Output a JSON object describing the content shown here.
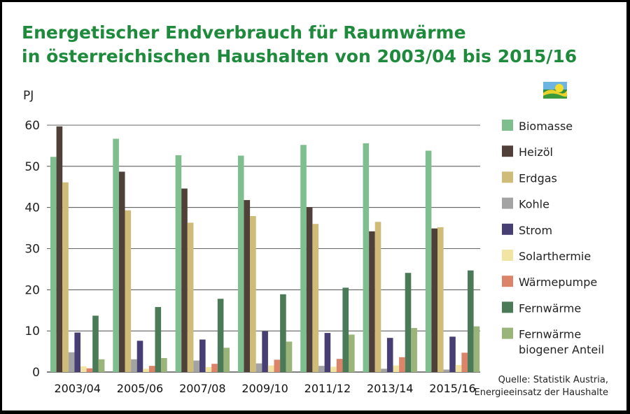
{
  "chart_data": {
    "type": "bar",
    "title": [
      "Energetischer Endverbrauch für Raumwärme",
      "in österreichischen Haushalten von 2003/04 bis 2015/16"
    ],
    "ylabel": "PJ",
    "ylim": [
      0,
      60
    ],
    "yticks": [
      0,
      10,
      20,
      30,
      40,
      50,
      60
    ],
    "grid": true,
    "legend_position": "right",
    "categories": [
      "2003/04",
      "2005/06",
      "2007/08",
      "2009/10",
      "2011/12",
      "2013/14",
      "2015/16"
    ],
    "series": [
      {
        "name": "Biomasse",
        "color": "#7fbf8f",
        "values": [
          52.3,
          56.7,
          52.7,
          52.6,
          55.2,
          55.6,
          53.8
        ]
      },
      {
        "name": "Heizöl",
        "color": "#4f4039",
        "values": [
          59.7,
          48.7,
          44.6,
          41.8,
          40.1,
          34.2,
          34.9
        ]
      },
      {
        "name": "Erdgas",
        "color": "#cfbc79",
        "values": [
          46.1,
          39.3,
          36.3,
          37.9,
          36.0,
          36.5,
          35.2
        ]
      },
      {
        "name": "Kohle",
        "color": "#a3a3a3",
        "values": [
          4.8,
          3.1,
          2.8,
          2.1,
          1.5,
          0.8,
          0.6
        ]
      },
      {
        "name": "Strom",
        "color": "#473e74",
        "values": [
          9.6,
          7.6,
          7.9,
          9.9,
          9.5,
          8.3,
          8.6
        ]
      },
      {
        "name": "Solarthermie",
        "color": "#f2e5a3",
        "values": [
          1.4,
          0.8,
          1.2,
          1.6,
          1.3,
          1.6,
          1.7
        ]
      },
      {
        "name": "Wärmepumpe",
        "color": "#dc8469",
        "values": [
          0.9,
          1.5,
          2.0,
          3.0,
          3.2,
          3.6,
          4.7
        ]
      },
      {
        "name": "Fernwärme",
        "color": "#4b7a58",
        "values": [
          13.7,
          15.8,
          17.8,
          18.9,
          20.5,
          24.1,
          24.7
        ]
      },
      {
        "name": "Fernwärme biogener Anteil",
        "legend_lines": [
          "Fernwärme",
          "biogener Anteil"
        ],
        "color": "#9ab47a",
        "values": [
          3.1,
          3.4,
          5.9,
          7.4,
          9.1,
          10.7,
          11.1
        ]
      }
    ],
    "source": [
      "Quelle: Statistik Austria,",
      "Energieeinsatz der Haushalte"
    ]
  },
  "colors": {
    "title": "#1e8a3c",
    "grid": "#333333",
    "frame": "#000000"
  },
  "logo": {
    "icon": "landscape-logo-icon"
  }
}
